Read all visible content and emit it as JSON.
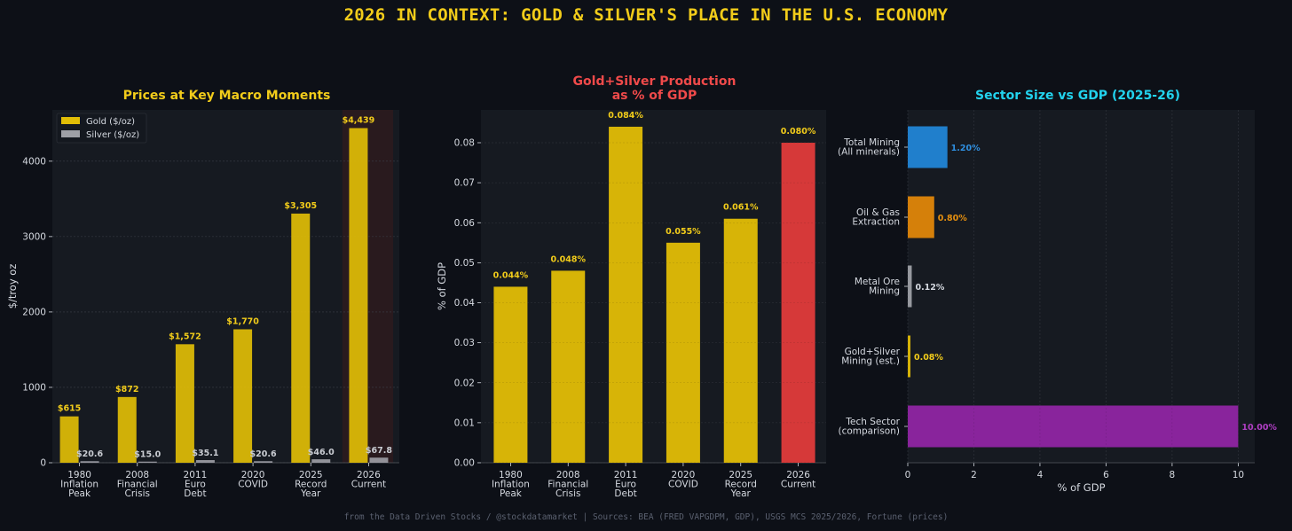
{
  "title": "2026 IN CONTEXT: GOLD & SILVER'S PLACE IN THE U.S. ECONOMY",
  "footer": "from the Data Driven Stocks / @stockdatamarket  |  Sources: BEA (FRED VAPGDPM, GDP), USGS MCS 2025/2026, Fortune (prices)",
  "colors": {
    "title": "#f2cc1a",
    "gold": "#e1bd06",
    "silver": "#9ea0a6",
    "red": "#e03b3b",
    "cyan": "#22d3ee",
    "red_title": "#f04a4a",
    "blue": "#2185d6",
    "orange": "#df860a",
    "purple": "#8f25a3",
    "purple_label": "#b03fc4",
    "panel": "#161a21",
    "highlight": "#2a1a1f"
  },
  "chart_data": [
    {
      "type": "bar",
      "title": "Prices at Key Macro Moments",
      "categories": [
        "1980\nInflation\nPeak",
        "2008\nFinancial\nCrisis",
        "2011\nEuro\nDebt",
        "2020\nCOVID",
        "2025\nRecord\nYear",
        "2026\nCurrent"
      ],
      "series": [
        {
          "name": "Gold ($/oz)",
          "values": [
            615,
            872,
            1572,
            1770,
            3305,
            4439
          ],
          "labels": [
            "$615",
            "$872",
            "$1,572",
            "$1,770",
            "$3,305",
            "$4,439"
          ]
        },
        {
          "name": "Silver ($/oz)",
          "values": [
            20.6,
            15.0,
            35.1,
            20.6,
            46.0,
            67.8
          ],
          "labels": [
            "$20.6",
            "$15.0",
            "$35.1",
            "$20.6",
            "$46.0",
            "$67.8"
          ]
        }
      ],
      "ylabel": "$/troy oz",
      "xlabel": "",
      "ylim": [
        0,
        4680
      ],
      "yticks": [
        "0",
        "1000",
        "2000",
        "3000",
        "4000"
      ],
      "ytick_values": [
        0,
        1000,
        2000,
        3000,
        4000
      ],
      "highlight_category": 5,
      "legend": "top-left",
      "grid": true
    },
    {
      "type": "bar",
      "title": "Gold+Silver Production\nas % of GDP",
      "categories": [
        "1980\nInflation\nPeak",
        "2008\nFinancial\nCrisis",
        "2011\nEuro\nDebt",
        "2020\nCOVID",
        "2025\nRecord\nYear",
        "2026\nCurrent"
      ],
      "values": [
        0.044,
        0.048,
        0.084,
        0.055,
        0.061,
        0.08
      ],
      "labels": [
        "0.044%",
        "0.048%",
        "0.084%",
        "0.055%",
        "0.061%",
        "0.080%"
      ],
      "ylabel": "% of GDP",
      "xlabel": "",
      "ylim": [
        0,
        0.0882
      ],
      "yticks": [
        "0.00",
        "0.01",
        "0.02",
        "0.03",
        "0.04",
        "0.05",
        "0.06",
        "0.07",
        "0.08"
      ],
      "ytick_values": [
        0,
        0.01,
        0.02,
        0.03,
        0.04,
        0.05,
        0.06,
        0.07,
        0.08
      ],
      "highlight_category": 5,
      "grid": true
    },
    {
      "type": "bar",
      "orientation": "horizontal",
      "title": "Sector Size vs GDP (2025-26)",
      "categories": [
        "Total Mining\n(All minerals)",
        "Oil & Gas\nExtraction",
        "Metal Ore\nMining",
        "Gold+Silver\nMining (est.)",
        "Tech Sector\n(comparison)"
      ],
      "values": [
        1.2,
        0.8,
        0.12,
        0.08,
        10.0
      ],
      "labels": [
        "1.20%",
        "0.80%",
        "0.12%",
        "0.08%",
        "10.00%"
      ],
      "bar_colors": [
        "#2185d6",
        "#df860a",
        "#9ea0a6",
        "#e1bd06",
        "#8f25a3"
      ],
      "label_colors": [
        "#2f8fe0",
        "#e6900f",
        "#d5d9e0",
        "#f2cc1a",
        "#b03fc4"
      ],
      "xlabel": "% of GDP",
      "ylabel": "",
      "xlim": [
        0,
        10.5
      ],
      "xticks": [
        "0",
        "2",
        "4",
        "6",
        "8",
        "10"
      ],
      "xtick_values": [
        0,
        2,
        4,
        6,
        8,
        10
      ],
      "grid": true
    }
  ]
}
